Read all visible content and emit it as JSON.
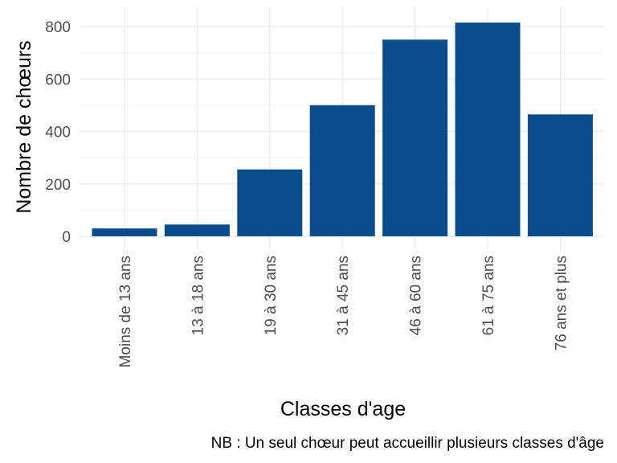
{
  "chart_data": {
    "type": "bar",
    "categories": [
      "Moins de 13 ans",
      "13 à 18 ans",
      "19 à 30 ans",
      "31 à 45 ans",
      "46 à 60 ans",
      "61 à 75 ans",
      "76 ans et plus"
    ],
    "values": [
      30,
      45,
      255,
      500,
      750,
      815,
      465
    ],
    "title": "",
    "xlabel": "Classes d'age",
    "ylabel": "Nombre de chœurs",
    "ylim": [
      0,
      860
    ],
    "yticks": [
      0,
      200,
      400,
      600,
      800
    ],
    "caption": "NB : Un seul chœur peut accueillir plusieurs classes d'âge",
    "bar_color": "#0b4d8b",
    "grid_major_color": "#ebebeb",
    "grid_minor_color": "#f4f4f4",
    "grid": true,
    "legend": "none"
  }
}
